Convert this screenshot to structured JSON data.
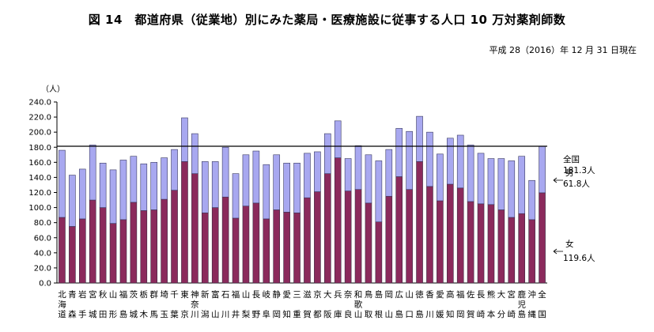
{
  "title": "図 14　都道府県（従業地）別にみた薬局・医療施設に従事する人口 10 万対薬剤師数",
  "subtitle": "平成 28（2016）年 12 月 31 日現在",
  "chart_data": {
    "type": "bar",
    "stacked": true,
    "ylabel": "（人）",
    "ylim": [
      0,
      240
    ],
    "yticks": [
      "0.0",
      "20.0",
      "40.0",
      "60.0",
      "80.0",
      "100.0",
      "120.0",
      "140.0",
      "160.0",
      "180.0",
      "200.0",
      "220.0",
      "240.0"
    ],
    "categories": [
      "北海道",
      "青森",
      "岩手",
      "宮城",
      "秋田",
      "山形",
      "福島",
      "茨城",
      "栃木",
      "群馬",
      "埼玉",
      "千葉",
      "東京",
      "神奈川",
      "新潟",
      "富山",
      "石川",
      "福井",
      "山梨",
      "長野",
      "岐阜",
      "静岡",
      "愛知",
      "三重",
      "滋賀",
      "京都",
      "大阪",
      "兵庫",
      "奈良",
      "和歌山",
      "鳥取",
      "島根",
      "岡山",
      "広島",
      "山口",
      "徳島",
      "香川",
      "愛媛",
      "高知",
      "福岡",
      "佐賀",
      "長崎",
      "熊本",
      "大分",
      "宮崎",
      "鹿児島",
      "沖縄",
      "全国"
    ],
    "series": [
      {
        "name": "女",
        "color": "#8b2a5c",
        "values": [
          87,
          75,
          85,
          110,
          100,
          79,
          84,
          107,
          96,
          97,
          111,
          123,
          161,
          145,
          93,
          100,
          114,
          86,
          102,
          106,
          85,
          97,
          94,
          93,
          113,
          121,
          145,
          166,
          122,
          124,
          106,
          81,
          115,
          141,
          124,
          161,
          128,
          109,
          131,
          126,
          108,
          105,
          104,
          97,
          87,
          92,
          84,
          119.6
        ]
      },
      {
        "name": "男",
        "color": "#a8a8f0",
        "values": [
          89,
          68,
          66,
          73,
          59,
          71,
          79,
          61,
          62,
          63,
          55,
          54,
          58,
          53,
          68,
          61,
          66,
          59,
          68,
          69,
          72,
          73,
          65,
          66,
          59,
          53,
          53,
          49,
          43,
          58,
          64,
          81,
          62,
          64,
          77,
          60,
          72,
          62,
          61,
          70,
          75,
          67,
          61,
          68,
          75,
          76,
          52,
          61.8
        ]
      }
    ],
    "reference_line": {
      "value": 181.3,
      "label": "全国",
      "value_label": "181.3人"
    },
    "annotations": [
      {
        "series": "男",
        "label": "男",
        "value_label": "61.8人"
      },
      {
        "series": "女",
        "label": "女",
        "value_label": "119.6人"
      }
    ]
  }
}
